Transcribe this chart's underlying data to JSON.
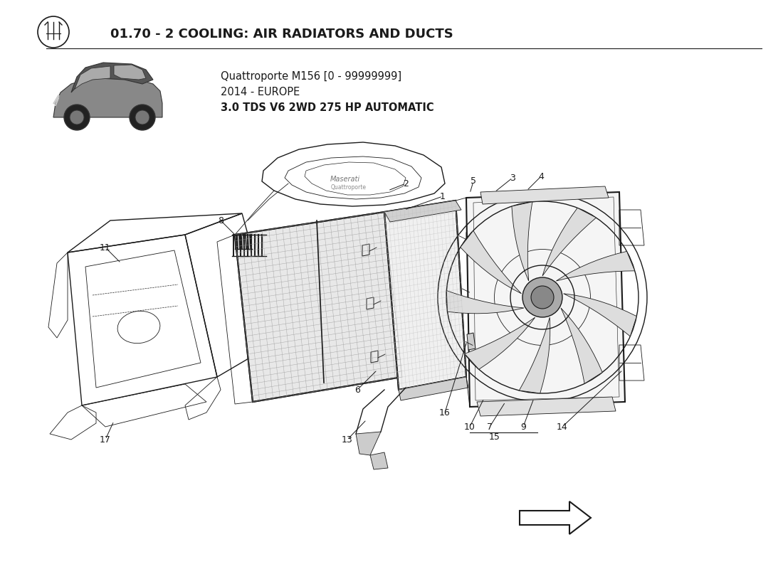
{
  "title": "01.70 - 2 COOLING: AIR RADIATORS AND DUCTS",
  "subtitle_line1": "Quattroporte M156 [0 - 99999999]",
  "subtitle_line2": "2014 - EUROPE",
  "subtitle_line3": "3.0 TDS V6 2WD 275 HP AUTOMATIC",
  "background_color": "#ffffff",
  "line_color": "#1a1a1a",
  "title_fontsize": 13,
  "label_fontsize": 9
}
